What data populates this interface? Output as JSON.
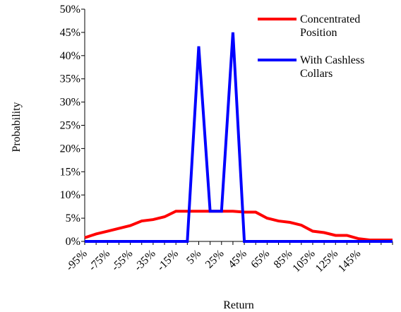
{
  "chart_data": {
    "type": "line",
    "x_label": "Return",
    "y_label": "Probability",
    "categories": [
      "-95%",
      null,
      "-75%",
      null,
      "-55%",
      null,
      "-35%",
      null,
      "-15%",
      null,
      "5%",
      null,
      "25%",
      null,
      "45%",
      null,
      "65%",
      null,
      "85%",
      null,
      "105%",
      null,
      "125%",
      null,
      "145%",
      null,
      null,
      null
    ],
    "series": [
      {
        "name": "Concentrated Position",
        "color": "#ff0000",
        "values": [
          0.8,
          1.6,
          2.2,
          2.8,
          3.4,
          4.4,
          4.7,
          5.3,
          6.5,
          6.5,
          6.5,
          6.5,
          6.5,
          6.5,
          6.3,
          6.3,
          5.0,
          4.4,
          4.1,
          3.5,
          2.2,
          1.9,
          1.3,
          1.3,
          0.6,
          0.3,
          0.3,
          0.3
        ]
      },
      {
        "name": "With Cashless Collars",
        "color": "#0000ff",
        "values": [
          0,
          0,
          0,
          0,
          0,
          0,
          0,
          0,
          0,
          0,
          42,
          6.5,
          6.5,
          45,
          0,
          0,
          0,
          0,
          0,
          0,
          0,
          0,
          0,
          0,
          0,
          0,
          0,
          0
        ]
      }
    ],
    "ylim": [
      0,
      50
    ],
    "yticks": [
      {
        "value": 0,
        "label": "0%"
      },
      {
        "value": 5,
        "label": "5%"
      },
      {
        "value": 10,
        "label": "10%"
      },
      {
        "value": 15,
        "label": "15%"
      },
      {
        "value": 20,
        "label": "20%"
      },
      {
        "value": 25,
        "label": "25%"
      },
      {
        "value": 30,
        "label": "30%"
      },
      {
        "value": 35,
        "label": "35%"
      },
      {
        "value": 40,
        "label": "40%"
      },
      {
        "value": 45,
        "label": "45%"
      },
      {
        "value": 50,
        "label": "50%"
      }
    ],
    "legend": "upper right"
  }
}
